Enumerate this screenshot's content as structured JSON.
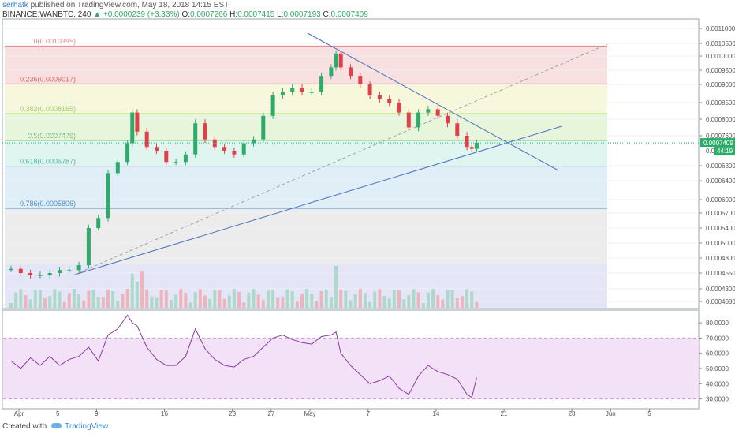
{
  "header": {
    "user": "serhatk",
    "published_text": "published on TradingView.com, May 18, 2018 14:15 EST",
    "symbol": "BINANCE:WANBTC, 240",
    "change_arrow": "▲",
    "change": "+0.0000239 (+3.33%)",
    "o_label": "O:",
    "o_value": "0.0007266",
    "h_label": "H:",
    "h_value": "0.0007415",
    "l_label": "L:",
    "l_value": "0.0007193",
    "c_label": "C:",
    "c_value": "0.0007409"
  },
  "footer": {
    "created_with": "Created with",
    "brand": "TradingView"
  },
  "colors": {
    "up": "#2eaa6b",
    "down": "#e0404a",
    "rsi": "#8a3a9e",
    "trend": "#4a72c0"
  },
  "chart_data": {
    "type": "candlestick",
    "price_axis": {
      "ticks": [
        0.0011,
        0.00105,
        0.001,
        0.00095,
        0.0009,
        0.00085,
        0.0008,
        0.00076,
        0.00068,
        0.00064,
        0.0006,
        0.00057,
        0.00054,
        0.0005,
        0.00048,
        0.000455,
        0.00043,
        0.000408
      ],
      "tick_labels": [
        "0.0011000",
        "0.0010500",
        "0.0010000",
        "0.0009500",
        "0.0009000",
        "0.0008500",
        "0.0008000",
        "0.0007600",
        "0.0006800",
        "0.0006400",
        "0.0006000",
        "0.0005700",
        "0.0005400",
        "0.0005000",
        "0.0004800",
        "0.0004550",
        "0.0004300",
        "0.0004080"
      ],
      "last_price_label": "0.0007409",
      "badge_prefix": "0.00",
      "countdown": "44:19"
    },
    "time_axis": {
      "labels": [
        "Apr",
        "5",
        "9",
        "16",
        "23",
        "27",
        "May",
        "7",
        "14",
        "21",
        "28",
        "Jun",
        "5"
      ],
      "positions_days": [
        0,
        4,
        8,
        15,
        22,
        26,
        30,
        36,
        43,
        50,
        57,
        61,
        65
      ]
    },
    "fibonacci": [
      {
        "label": "0(0.0010395)",
        "level": 0.0010395
      },
      {
        "label": "0.236(0.0009017)",
        "level": 0.0009017
      },
      {
        "label": "0.382(0.0008165)",
        "level": 0.0008165
      },
      {
        "label": "0.5(0.0007476)",
        "level": 0.0007476
      },
      {
        "label": "0.618(0.0006787)",
        "level": 0.0006787
      },
      {
        "label": "0.786(0.0005806)",
        "level": 0.0005806
      }
    ],
    "close_path": [
      [
        0,
        0.000462
      ],
      [
        1,
        0.000455
      ],
      [
        2,
        0.000452
      ],
      [
        3,
        0.000452
      ],
      [
        4,
        0.000455
      ],
      [
        5,
        0.00046
      ],
      [
        6,
        0.00046
      ],
      [
        7,
        0.000468
      ],
      [
        8,
        0.00054
      ],
      [
        9,
        0.00056
      ],
      [
        10,
        0.00066
      ],
      [
        11,
        0.00069
      ],
      [
        12,
        0.00074
      ],
      [
        12.5,
        0.00082
      ],
      [
        13,
        0.00077
      ],
      [
        14,
        0.00073
      ],
      [
        15,
        0.00072
      ],
      [
        16,
        0.00069
      ],
      [
        17,
        0.00069
      ],
      [
        18,
        0.00071
      ],
      [
        19,
        0.00079
      ],
      [
        20,
        0.00075
      ],
      [
        21,
        0.00073
      ],
      [
        22,
        0.00072
      ],
      [
        23,
        0.00071
      ],
      [
        24,
        0.00074
      ],
      [
        25,
        0.00075
      ],
      [
        26,
        0.00081
      ],
      [
        27,
        0.00087
      ],
      [
        28,
        0.00088
      ],
      [
        29,
        0.00089
      ],
      [
        30,
        0.00088
      ],
      [
        31,
        0.00088
      ],
      [
        32,
        0.00093
      ],
      [
        33,
        0.00096
      ],
      [
        33.5,
        0.00101
      ],
      [
        34,
        0.00096
      ],
      [
        35,
        0.00093
      ],
      [
        36,
        0.0009
      ],
      [
        37,
        0.00087
      ],
      [
        38,
        0.00086
      ],
      [
        39,
        0.00085
      ],
      [
        40,
        0.00082
      ],
      [
        41,
        0.00078
      ],
      [
        42,
        0.00082
      ],
      [
        43,
        0.00083
      ],
      [
        44,
        0.00081
      ],
      [
        45,
        0.00079
      ],
      [
        46,
        0.00076
      ],
      [
        47,
        0.00073
      ],
      [
        47.5,
        0.000725
      ],
      [
        48,
        0.000741
      ]
    ],
    "rsi": {
      "levels": [
        80,
        70,
        60,
        50,
        40,
        30
      ],
      "tick_labels": [
        "80.0000",
        "70.0000",
        "60.0000",
        "50.0000",
        "40.0000",
        "30.0000"
      ],
      "overbought": 70,
      "oversold": 30,
      "path": [
        [
          0,
          55
        ],
        [
          1,
          50
        ],
        [
          2,
          57
        ],
        [
          3,
          52
        ],
        [
          4,
          58
        ],
        [
          5,
          52
        ],
        [
          6,
          56
        ],
        [
          7,
          58
        ],
        [
          8,
          64
        ],
        [
          9,
          55
        ],
        [
          10,
          72
        ],
        [
          11,
          76
        ],
        [
          12,
          85
        ],
        [
          12.5,
          80
        ],
        [
          13,
          78
        ],
        [
          14,
          64
        ],
        [
          15,
          56
        ],
        [
          16,
          52
        ],
        [
          17,
          52
        ],
        [
          18,
          58
        ],
        [
          19,
          76
        ],
        [
          20,
          63
        ],
        [
          21,
          56
        ],
        [
          22,
          52
        ],
        [
          23,
          51
        ],
        [
          24,
          56
        ],
        [
          25,
          58
        ],
        [
          26,
          64
        ],
        [
          27,
          70
        ],
        [
          28,
          72
        ],
        [
          29,
          69
        ],
        [
          30,
          67
        ],
        [
          31,
          66
        ],
        [
          32,
          71
        ],
        [
          33,
          72
        ],
        [
          33.5,
          74
        ],
        [
          34,
          60
        ],
        [
          35,
          52
        ],
        [
          36,
          46
        ],
        [
          37,
          40
        ],
        [
          38,
          42
        ],
        [
          39,
          45
        ],
        [
          40,
          37
        ],
        [
          41,
          33
        ],
        [
          42,
          45
        ],
        [
          43,
          52
        ],
        [
          44,
          48
        ],
        [
          45,
          46
        ],
        [
          46,
          43
        ],
        [
          47,
          33
        ],
        [
          47.5,
          31
        ],
        [
          48,
          44
        ]
      ]
    }
  }
}
